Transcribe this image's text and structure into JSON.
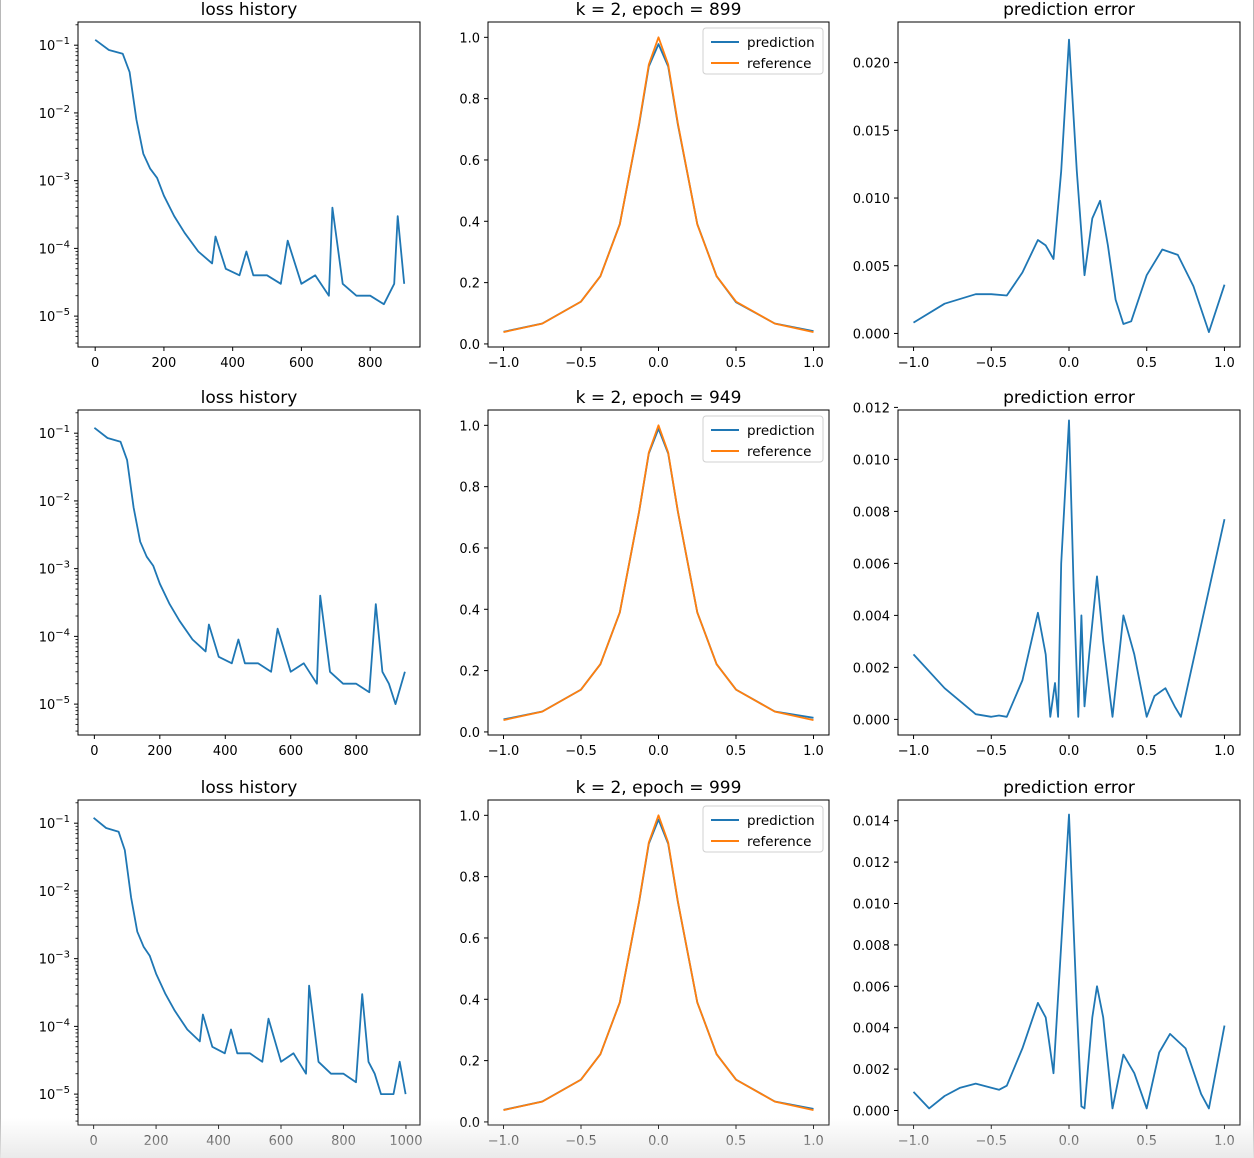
{
  "chart_data": [
    {
      "type": "line",
      "title": "loss history",
      "yscale": "log",
      "xlim": [
        -50,
        945
      ],
      "ylim": [
        3.5e-06,
        0.22
      ],
      "xticks": [
        0,
        200,
        400,
        600,
        800
      ],
      "yticks": [
        {
          "v": 0.1,
          "m": "10",
          "e": "−1"
        },
        {
          "v": 0.01,
          "m": "10",
          "e": "−2"
        },
        {
          "v": 0.001,
          "m": "10",
          "e": "−3"
        },
        {
          "v": 0.0001,
          "m": "10",
          "e": "−4"
        },
        {
          "v": 1e-05,
          "m": "10",
          "e": "−5"
        }
      ],
      "series": [
        {
          "color": "#1f77b4",
          "x": [
            0,
            40,
            80,
            100,
            120,
            140,
            160,
            180,
            200,
            230,
            260,
            300,
            340,
            350,
            380,
            420,
            440,
            460,
            500,
            540,
            560,
            600,
            640,
            680,
            690,
            720,
            760,
            800,
            840,
            870,
            880,
            899
          ],
          "y": [
            0.12,
            0.085,
            0.075,
            0.04,
            0.008,
            0.0025,
            0.0015,
            0.0011,
            0.0006,
            0.0003,
            0.00017,
            9e-05,
            6e-05,
            0.00015,
            5e-05,
            4e-05,
            9e-05,
            4e-05,
            4e-05,
            3e-05,
            0.00013,
            3e-05,
            4e-05,
            2e-05,
            0.0004,
            3e-05,
            2e-05,
            2e-05,
            1.5e-05,
            3e-05,
            0.0003,
            3e-05
          ]
        }
      ]
    },
    {
      "type": "line",
      "title": "k = 2, epoch = 899",
      "xlim": [
        -1.1,
        1.1
      ],
      "ylim": [
        -0.01,
        1.05
      ],
      "xticks": [
        -1.0,
        -0.5,
        0.0,
        0.5,
        1.0
      ],
      "xtick_labels": [
        "−1.0",
        "−0.5",
        "0.0",
        "0.5",
        "1.0"
      ],
      "yticks": [
        0.0,
        0.2,
        0.4,
        0.6,
        0.8,
        1.0
      ],
      "ytick_labels": [
        "0.0",
        "0.2",
        "0.4",
        "0.6",
        "0.8",
        "1.0"
      ],
      "legend": [
        "prediction",
        "reference"
      ],
      "legend_position": "top-right",
      "series": [
        {
          "name": "prediction",
          "color": "#1f77b4",
          "x": [
            -1.0,
            -0.75,
            -0.5,
            -0.375,
            -0.25,
            -0.125,
            -0.0625,
            0.0,
            0.0625,
            0.125,
            0.25,
            0.375,
            0.5,
            0.75,
            1.0
          ],
          "y": [
            0.0395,
            0.0665,
            0.138,
            0.221,
            0.391,
            0.715,
            0.905,
            0.978,
            0.905,
            0.715,
            0.391,
            0.221,
            0.136,
            0.0665,
            0.042
          ]
        },
        {
          "name": "reference",
          "color": "#ff7f0e",
          "x": [
            -1.0,
            -0.75,
            -0.5,
            -0.375,
            -0.25,
            -0.125,
            -0.0625,
            0.0,
            0.0625,
            0.125,
            0.25,
            0.375,
            0.5,
            0.75,
            1.0
          ],
          "y": [
            0.0385,
            0.0664,
            0.138,
            0.221,
            0.39,
            0.719,
            0.911,
            1.0,
            0.911,
            0.719,
            0.39,
            0.221,
            0.138,
            0.0664,
            0.0385
          ]
        }
      ]
    },
    {
      "type": "line",
      "title": "prediction error",
      "xlim": [
        -1.1,
        1.1
      ],
      "ylim": [
        -0.001,
        0.023
      ],
      "xticks": [
        -1.0,
        -0.5,
        0.0,
        0.5,
        1.0
      ],
      "xtick_labels": [
        "−1.0",
        "−0.5",
        "0.0",
        "0.5",
        "1.0"
      ],
      "yticks": [
        0.0,
        0.005,
        0.01,
        0.015,
        0.02
      ],
      "ytick_labels": [
        "0.000",
        "0.005",
        "0.010",
        "0.015",
        "0.020"
      ],
      "series": [
        {
          "color": "#1f77b4",
          "x": [
            -1.0,
            -0.8,
            -0.6,
            -0.5,
            -0.4,
            -0.3,
            -0.2,
            -0.15,
            -0.1,
            -0.05,
            0.0,
            0.05,
            0.1,
            0.15,
            0.2,
            0.25,
            0.3,
            0.35,
            0.4,
            0.5,
            0.6,
            0.7,
            0.8,
            0.9,
            1.0
          ],
          "y": [
            0.0008,
            0.0022,
            0.0029,
            0.0029,
            0.0028,
            0.0045,
            0.0069,
            0.0065,
            0.0055,
            0.012,
            0.0217,
            0.012,
            0.0043,
            0.0085,
            0.0098,
            0.0065,
            0.0025,
            0.0007,
            0.0009,
            0.0043,
            0.0062,
            0.0058,
            0.0035,
            0.0001,
            0.0036
          ]
        }
      ]
    },
    {
      "type": "line",
      "title": "loss history",
      "yscale": "log",
      "xlim": [
        -50,
        995
      ],
      "ylim": [
        3.5e-06,
        0.22
      ],
      "xticks": [
        0,
        200,
        400,
        600,
        800
      ],
      "yticks": [
        {
          "v": 0.1,
          "m": "10",
          "e": "−1"
        },
        {
          "v": 0.01,
          "m": "10",
          "e": "−2"
        },
        {
          "v": 0.001,
          "m": "10",
          "e": "−3"
        },
        {
          "v": 0.0001,
          "m": "10",
          "e": "−4"
        },
        {
          "v": 1e-05,
          "m": "10",
          "e": "−5"
        }
      ],
      "series": [
        {
          "color": "#1f77b4",
          "x": [
            0,
            40,
            80,
            100,
            120,
            140,
            160,
            180,
            200,
            230,
            260,
            300,
            340,
            350,
            380,
            420,
            440,
            460,
            500,
            540,
            560,
            600,
            640,
            680,
            690,
            720,
            760,
            800,
            840,
            860,
            880,
            900,
            920,
            949
          ],
          "y": [
            0.12,
            0.085,
            0.075,
            0.04,
            0.008,
            0.0025,
            0.0015,
            0.0011,
            0.0006,
            0.0003,
            0.00017,
            9e-05,
            6e-05,
            0.00015,
            5e-05,
            4e-05,
            9e-05,
            4e-05,
            4e-05,
            3e-05,
            0.00013,
            3e-05,
            4e-05,
            2e-05,
            0.0004,
            3e-05,
            2e-05,
            2e-05,
            1.5e-05,
            0.0003,
            3e-05,
            2e-05,
            1e-05,
            3e-05
          ]
        }
      ]
    },
    {
      "type": "line",
      "title": "k = 2, epoch = 949",
      "xlim": [
        -1.1,
        1.1
      ],
      "ylim": [
        -0.01,
        1.05
      ],
      "xticks": [
        -1.0,
        -0.5,
        0.0,
        0.5,
        1.0
      ],
      "xtick_labels": [
        "−1.0",
        "−0.5",
        "0.0",
        "0.5",
        "1.0"
      ],
      "yticks": [
        0.0,
        0.2,
        0.4,
        0.6,
        0.8,
        1.0
      ],
      "ytick_labels": [
        "0.0",
        "0.2",
        "0.4",
        "0.6",
        "0.8",
        "1.0"
      ],
      "legend": [
        "prediction",
        "reference"
      ],
      "legend_position": "top-right",
      "series": [
        {
          "name": "prediction",
          "color": "#1f77b4",
          "x": [
            -1.0,
            -0.75,
            -0.5,
            -0.375,
            -0.25,
            -0.125,
            -0.0625,
            0.0,
            0.0625,
            0.125,
            0.25,
            0.375,
            0.5,
            0.75,
            1.0
          ],
          "y": [
            0.041,
            0.0665,
            0.138,
            0.221,
            0.39,
            0.718,
            0.908,
            0.989,
            0.908,
            0.718,
            0.39,
            0.221,
            0.138,
            0.0665,
            0.046
          ]
        },
        {
          "name": "reference",
          "color": "#ff7f0e",
          "x": [
            -1.0,
            -0.75,
            -0.5,
            -0.375,
            -0.25,
            -0.125,
            -0.0625,
            0.0,
            0.0625,
            0.125,
            0.25,
            0.375,
            0.5,
            0.75,
            1.0
          ],
          "y": [
            0.0385,
            0.0664,
            0.138,
            0.221,
            0.39,
            0.719,
            0.911,
            1.0,
            0.911,
            0.719,
            0.39,
            0.221,
            0.138,
            0.0664,
            0.0385
          ]
        }
      ]
    },
    {
      "type": "line",
      "title": "prediction error",
      "xlim": [
        -1.1,
        1.1
      ],
      "ylim": [
        -0.0006,
        0.0119
      ],
      "xticks": [
        -1.0,
        -0.5,
        0.0,
        0.5,
        1.0
      ],
      "xtick_labels": [
        "−1.0",
        "−0.5",
        "0.0",
        "0.5",
        "1.0"
      ],
      "yticks": [
        0.0,
        0.002,
        0.004,
        0.006,
        0.008,
        0.01,
        0.012
      ],
      "ytick_labels": [
        "0.000",
        "0.002",
        "0.004",
        "0.006",
        "0.008",
        "0.010",
        "0.012"
      ],
      "series": [
        {
          "color": "#1f77b4",
          "x": [
            -1.0,
            -0.8,
            -0.6,
            -0.5,
            -0.45,
            -0.4,
            -0.3,
            -0.2,
            -0.15,
            -0.12,
            -0.09,
            -0.07,
            -0.05,
            0.0,
            0.03,
            0.06,
            0.08,
            0.1,
            0.13,
            0.18,
            0.22,
            0.28,
            0.35,
            0.42,
            0.5,
            0.55,
            0.62,
            0.68,
            0.72,
            1.0
          ],
          "y": [
            0.0025,
            0.0012,
            0.0002,
            0.0001,
            0.00015,
            0.0001,
            0.0015,
            0.0041,
            0.0025,
            0.0001,
            0.0014,
            0.0001,
            0.006,
            0.0115,
            0.005,
            0.0001,
            0.004,
            0.0005,
            0.0025,
            0.0055,
            0.003,
            0.0001,
            0.004,
            0.0025,
            0.0001,
            0.0009,
            0.0012,
            0.0005,
            0.0001,
            0.0077
          ]
        }
      ]
    },
    {
      "type": "line",
      "title": "loss history",
      "yscale": "log",
      "xlim": [
        -50,
        1045
      ],
      "ylim": [
        3.5e-06,
        0.22
      ],
      "xticks": [
        0,
        200,
        400,
        600,
        800,
        1000
      ],
      "yticks": [
        {
          "v": 0.1,
          "m": "10",
          "e": "−1"
        },
        {
          "v": 0.01,
          "m": "10",
          "e": "−2"
        },
        {
          "v": 0.001,
          "m": "10",
          "e": "−3"
        },
        {
          "v": 0.0001,
          "m": "10",
          "e": "−4"
        },
        {
          "v": 1e-05,
          "m": "10",
          "e": "−5"
        }
      ],
      "series": [
        {
          "color": "#1f77b4",
          "x": [
            0,
            40,
            80,
            100,
            120,
            140,
            160,
            180,
            200,
            230,
            260,
            300,
            340,
            350,
            380,
            420,
            440,
            460,
            500,
            540,
            560,
            600,
            640,
            680,
            690,
            720,
            760,
            800,
            840,
            860,
            880,
            900,
            920,
            960,
            980,
            999
          ],
          "y": [
            0.12,
            0.085,
            0.075,
            0.04,
            0.008,
            0.0025,
            0.0015,
            0.0011,
            0.0006,
            0.0003,
            0.00017,
            9e-05,
            6e-05,
            0.00015,
            5e-05,
            4e-05,
            9e-05,
            4e-05,
            4e-05,
            3e-05,
            0.00013,
            3e-05,
            4e-05,
            2e-05,
            0.0004,
            3e-05,
            2e-05,
            2e-05,
            1.5e-05,
            0.0003,
            3e-05,
            2e-05,
            1e-05,
            1e-05,
            3e-05,
            1e-05
          ]
        }
      ]
    },
    {
      "type": "line",
      "title": "k = 2, epoch = 999",
      "xlim": [
        -1.1,
        1.1
      ],
      "ylim": [
        -0.01,
        1.05
      ],
      "xticks": [
        -1.0,
        -0.5,
        0.0,
        0.5,
        1.0
      ],
      "xtick_labels": [
        "−1.0",
        "−0.5",
        "0.0",
        "0.5",
        "1.0"
      ],
      "yticks": [
        0.0,
        0.2,
        0.4,
        0.6,
        0.8,
        1.0
      ],
      "ytick_labels": [
        "0.0",
        "0.2",
        "0.4",
        "0.6",
        "0.8",
        "1.0"
      ],
      "legend": [
        "prediction",
        "reference"
      ],
      "legend_position": "top-right",
      "series": [
        {
          "name": "prediction",
          "color": "#1f77b4",
          "x": [
            -1.0,
            -0.75,
            -0.5,
            -0.375,
            -0.25,
            -0.125,
            -0.0625,
            0.0,
            0.0625,
            0.125,
            0.25,
            0.375,
            0.5,
            0.75,
            1.0
          ],
          "y": [
            0.0393,
            0.0665,
            0.138,
            0.221,
            0.39,
            0.717,
            0.907,
            0.986,
            0.907,
            0.717,
            0.39,
            0.221,
            0.138,
            0.0665,
            0.0425
          ]
        },
        {
          "name": "reference",
          "color": "#ff7f0e",
          "x": [
            -1.0,
            -0.75,
            -0.5,
            -0.375,
            -0.25,
            -0.125,
            -0.0625,
            0.0,
            0.0625,
            0.125,
            0.25,
            0.375,
            0.5,
            0.75,
            1.0
          ],
          "y": [
            0.0385,
            0.0664,
            0.138,
            0.221,
            0.39,
            0.719,
            0.911,
            1.0,
            0.911,
            0.719,
            0.39,
            0.221,
            0.138,
            0.0664,
            0.0385
          ]
        }
      ]
    },
    {
      "type": "line",
      "title": "prediction error",
      "xlim": [
        -1.1,
        1.1
      ],
      "ylim": [
        -0.0007,
        0.015
      ],
      "xticks": [
        -1.0,
        -0.5,
        0.0,
        0.5,
        1.0
      ],
      "xtick_labels": [
        "−1.0",
        "−0.5",
        "0.0",
        "0.5",
        "1.0"
      ],
      "yticks": [
        0.0,
        0.002,
        0.004,
        0.006,
        0.008,
        0.01,
        0.012,
        0.014
      ],
      "ytick_labels": [
        "0.000",
        "0.002",
        "0.004",
        "0.006",
        "0.008",
        "0.010",
        "0.012",
        "0.014"
      ],
      "series": [
        {
          "color": "#1f77b4",
          "x": [
            -1.0,
            -0.9,
            -0.8,
            -0.7,
            -0.6,
            -0.5,
            -0.45,
            -0.4,
            -0.3,
            -0.2,
            -0.15,
            -0.1,
            -0.05,
            0.0,
            0.05,
            0.08,
            0.1,
            0.15,
            0.18,
            0.22,
            0.28,
            0.35,
            0.42,
            0.5,
            0.58,
            0.65,
            0.75,
            0.85,
            0.9,
            1.0
          ],
          "y": [
            0.0009,
            0.0001,
            0.0007,
            0.0011,
            0.0013,
            0.0011,
            0.001,
            0.0012,
            0.003,
            0.0052,
            0.0045,
            0.0018,
            0.008,
            0.0143,
            0.005,
            0.0002,
            0.0001,
            0.0045,
            0.006,
            0.0045,
            0.0001,
            0.0027,
            0.0018,
            0.0001,
            0.0028,
            0.0037,
            0.003,
            0.0008,
            0.0001,
            0.0041
          ]
        }
      ]
    }
  ]
}
